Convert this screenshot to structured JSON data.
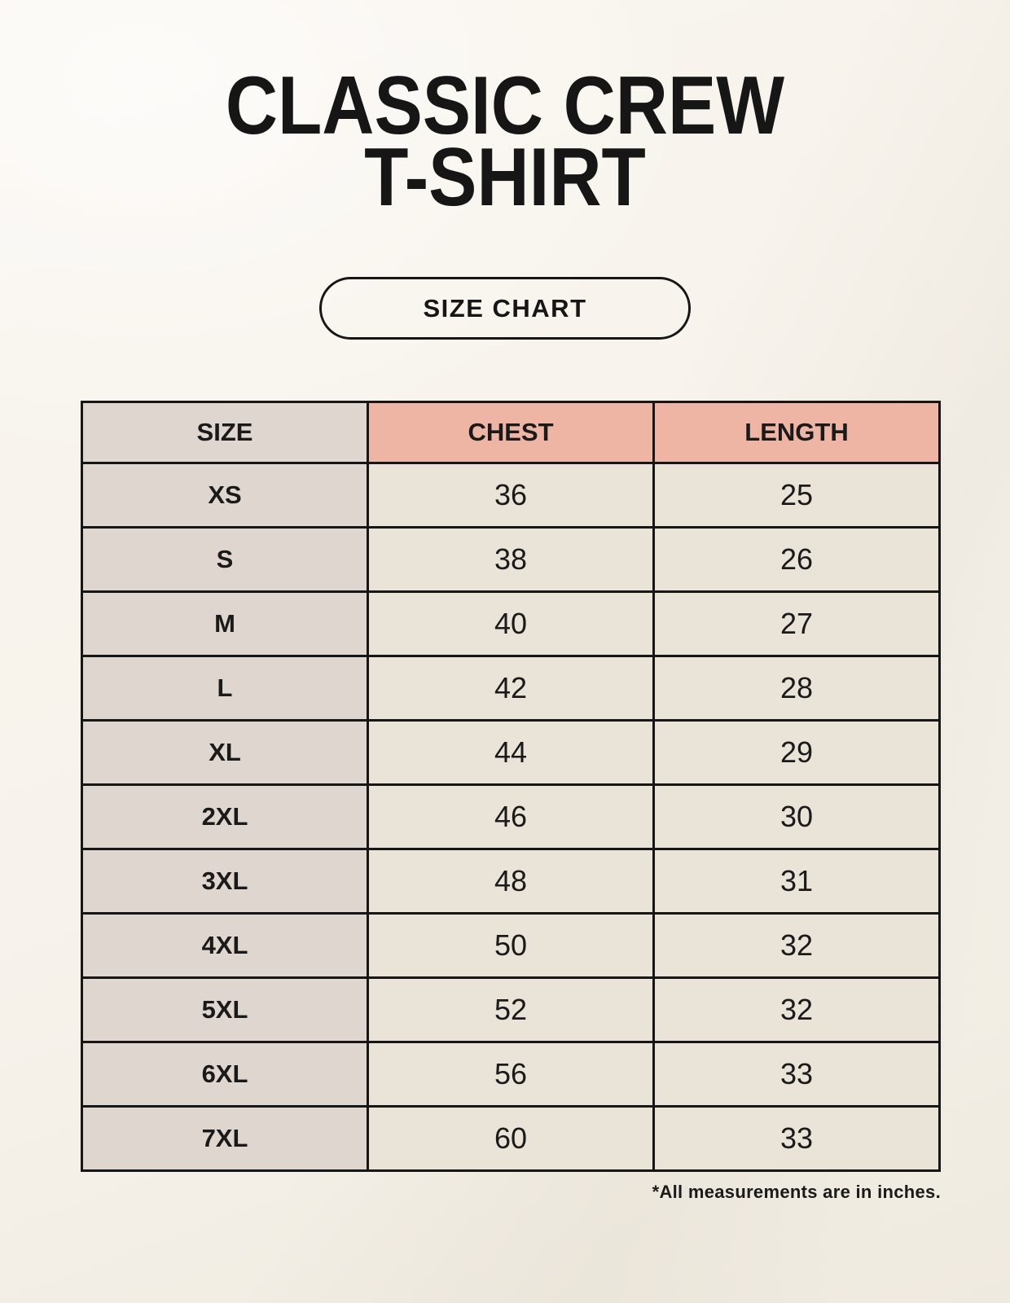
{
  "header": {
    "title_line1": "CLASSIC CREW",
    "title_line2": "T-SHIRT",
    "badge_label": "SIZE CHART"
  },
  "footnote": "*All measurements are in inches.",
  "colors": {
    "page_bg": "#f7f3ec",
    "header_pink": "#eeb4a4",
    "cell_gray": "#ded6cf",
    "cell_cream": "#eae3d8",
    "border_black": "#161616",
    "text_black": "#1a1a1a"
  },
  "chart_data": {
    "type": "table",
    "title": "CLASSIC CREW T-SHIRT SIZE CHART",
    "units": "inches",
    "columns": [
      "SIZE",
      "CHEST",
      "LENGTH"
    ],
    "rows": [
      [
        "XS",
        "36",
        "25"
      ],
      [
        "S",
        "38",
        "26"
      ],
      [
        "M",
        "40",
        "27"
      ],
      [
        "L",
        "42",
        "28"
      ],
      [
        "XL",
        "44",
        "29"
      ],
      [
        "2XL",
        "46",
        "30"
      ],
      [
        "3XL",
        "48",
        "31"
      ],
      [
        "4XL",
        "50",
        "32"
      ],
      [
        "5XL",
        "52",
        "32"
      ],
      [
        "6XL",
        "56",
        "33"
      ],
      [
        "7XL",
        "60",
        "33"
      ]
    ]
  }
}
